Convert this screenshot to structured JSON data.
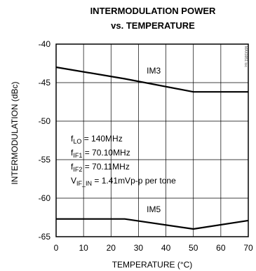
{
  "chart_data": {
    "type": "line",
    "title": "INTERMODULATION POWER",
    "subtitle": "vs. TEMPERATURE",
    "xlabel": "TEMPERATURE (°C)",
    "ylabel": "INTERMODULATION (dBc)",
    "xlim": [
      0,
      70
    ],
    "ylim": [
      -65,
      -40
    ],
    "xticks": [
      0,
      10,
      20,
      30,
      40,
      50,
      60,
      70
    ],
    "yticks": [
      -40,
      -45,
      -50,
      -55,
      -60,
      -65
    ],
    "grid": true,
    "series": [
      {
        "name": "IM3",
        "x": [
          0,
          25,
          50,
          70
        ],
        "y": [
          -43.0,
          -44.5,
          -46.2,
          -46.2
        ]
      },
      {
        "name": "IM5",
        "x": [
          0,
          25,
          50,
          70
        ],
        "y": [
          -62.7,
          -62.7,
          -64.0,
          -62.9
        ]
      }
    ],
    "series_label_positions": [
      {
        "series": "IM3",
        "x": 33,
        "y": -43.8
      },
      {
        "series": "IM5",
        "x": 33,
        "y": -61.8
      }
    ],
    "conditions": [
      {
        "main": "f",
        "sub": "LO",
        "rest": " = 140MHz"
      },
      {
        "main": "f",
        "sub": "IF1",
        "rest": " = 70.10MHz"
      },
      {
        "main": "f",
        "sub": "IF2",
        "rest": " = 70.11MHz"
      },
      {
        "main": "V",
        "sub": "IF_IN",
        "rest": " = 1.41mVp-p per tone"
      }
    ],
    "watermark": "MAX9951 toc"
  }
}
